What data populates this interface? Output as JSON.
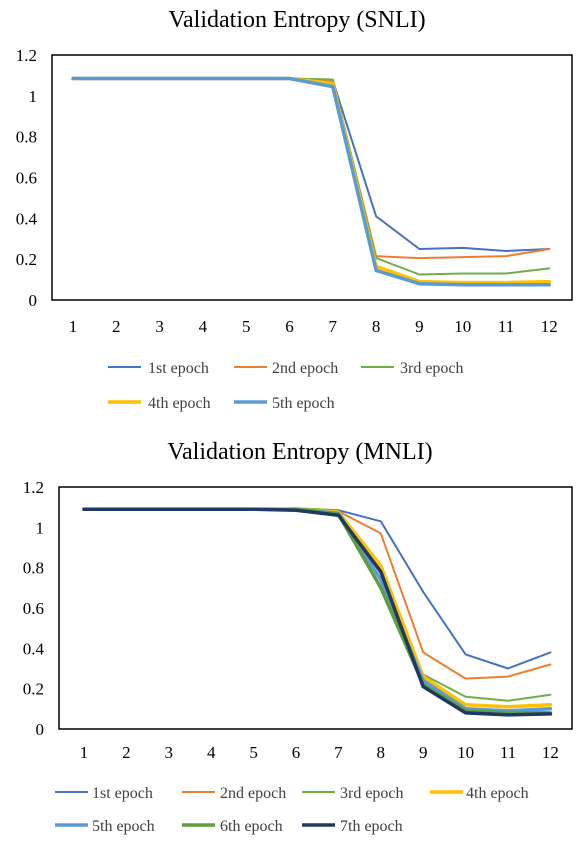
{
  "charts": [
    {
      "type": "line",
      "title": "Validation Entropy (SNLI)",
      "categories": [
        "1",
        "2",
        "3",
        "4",
        "5",
        "6",
        "7",
        "8",
        "9",
        "10",
        "11",
        "12"
      ],
      "ylim": [
        0,
        1.2
      ],
      "y_ticks": [
        "0",
        "0.2",
        "0.4",
        "0.6",
        "0.8",
        "1",
        "1.2"
      ],
      "grid": false,
      "legend_position": "bottom",
      "series": [
        {
          "name": "1st epoch",
          "color": "#4472C4",
          "width": 2,
          "values": [
            1.085,
            1.085,
            1.085,
            1.085,
            1.085,
            1.085,
            1.075,
            0.41,
            0.25,
            0.255,
            0.24,
            0.25
          ]
        },
        {
          "name": "2nd epoch",
          "color": "#ED7D31",
          "width": 2,
          "values": [
            1.085,
            1.085,
            1.085,
            1.085,
            1.085,
            1.085,
            1.075,
            0.215,
            0.205,
            0.21,
            0.215,
            0.25
          ]
        },
        {
          "name": "3rd epoch",
          "color": "#70AD47",
          "width": 2,
          "values": [
            1.085,
            1.085,
            1.085,
            1.085,
            1.085,
            1.085,
            1.08,
            0.205,
            0.125,
            0.13,
            0.13,
            0.155
          ]
        },
        {
          "name": "4th epoch",
          "color": "#FFC000",
          "width": 3.5,
          "values": [
            1.085,
            1.085,
            1.085,
            1.085,
            1.085,
            1.085,
            1.06,
            0.165,
            0.09,
            0.085,
            0.085,
            0.09
          ]
        },
        {
          "name": "5th epoch",
          "color": "#5B9BD5",
          "width": 3.5,
          "values": [
            1.085,
            1.085,
            1.085,
            1.085,
            1.085,
            1.085,
            1.045,
            0.145,
            0.08,
            0.075,
            0.075,
            0.075
          ]
        }
      ]
    },
    {
      "type": "line",
      "title": "Validation Entropy (MNLI)",
      "categories": [
        "1",
        "2",
        "3",
        "4",
        "5",
        "6",
        "7",
        "8",
        "9",
        "10",
        "11",
        "12"
      ],
      "ylim": [
        0,
        1.2
      ],
      "y_ticks": [
        "0",
        "0.2",
        "0.4",
        "0.6",
        "0.8",
        "1",
        "1.2"
      ],
      "grid": false,
      "legend_position": "bottom",
      "series": [
        {
          "name": "1st epoch",
          "color": "#4472C4",
          "width": 2,
          "values": [
            1.09,
            1.09,
            1.09,
            1.09,
            1.09,
            1.09,
            1.085,
            1.03,
            0.68,
            0.37,
            0.3,
            0.38
          ]
        },
        {
          "name": "2nd epoch",
          "color": "#ED7D31",
          "width": 2,
          "values": [
            1.09,
            1.09,
            1.09,
            1.09,
            1.09,
            1.09,
            1.08,
            0.97,
            0.38,
            0.25,
            0.26,
            0.32
          ]
        },
        {
          "name": "3rd epoch",
          "color": "#70AD47",
          "width": 2,
          "values": [
            1.09,
            1.09,
            1.09,
            1.09,
            1.09,
            1.095,
            1.085,
            0.77,
            0.27,
            0.16,
            0.14,
            0.17
          ]
        },
        {
          "name": "4th epoch",
          "color": "#FFC000",
          "width": 3.5,
          "values": [
            1.09,
            1.09,
            1.09,
            1.09,
            1.09,
            1.09,
            1.075,
            0.81,
            0.26,
            0.12,
            0.11,
            0.12
          ]
        },
        {
          "name": "5th epoch",
          "color": "#5B9BD5",
          "width": 3.5,
          "values": [
            1.09,
            1.09,
            1.09,
            1.09,
            1.09,
            1.09,
            1.07,
            0.74,
            0.24,
            0.1,
            0.09,
            0.1
          ]
        },
        {
          "name": "6th epoch",
          "color": "#5E9E3C",
          "width": 3.5,
          "values": [
            1.09,
            1.09,
            1.09,
            1.09,
            1.09,
            1.09,
            1.065,
            0.7,
            0.22,
            0.09,
            0.08,
            0.08
          ]
        },
        {
          "name": "7th epoch",
          "color": "#203864",
          "width": 3.5,
          "values": [
            1.09,
            1.09,
            1.09,
            1.09,
            1.09,
            1.085,
            1.06,
            0.78,
            0.21,
            0.08,
            0.07,
            0.075
          ]
        }
      ]
    }
  ]
}
